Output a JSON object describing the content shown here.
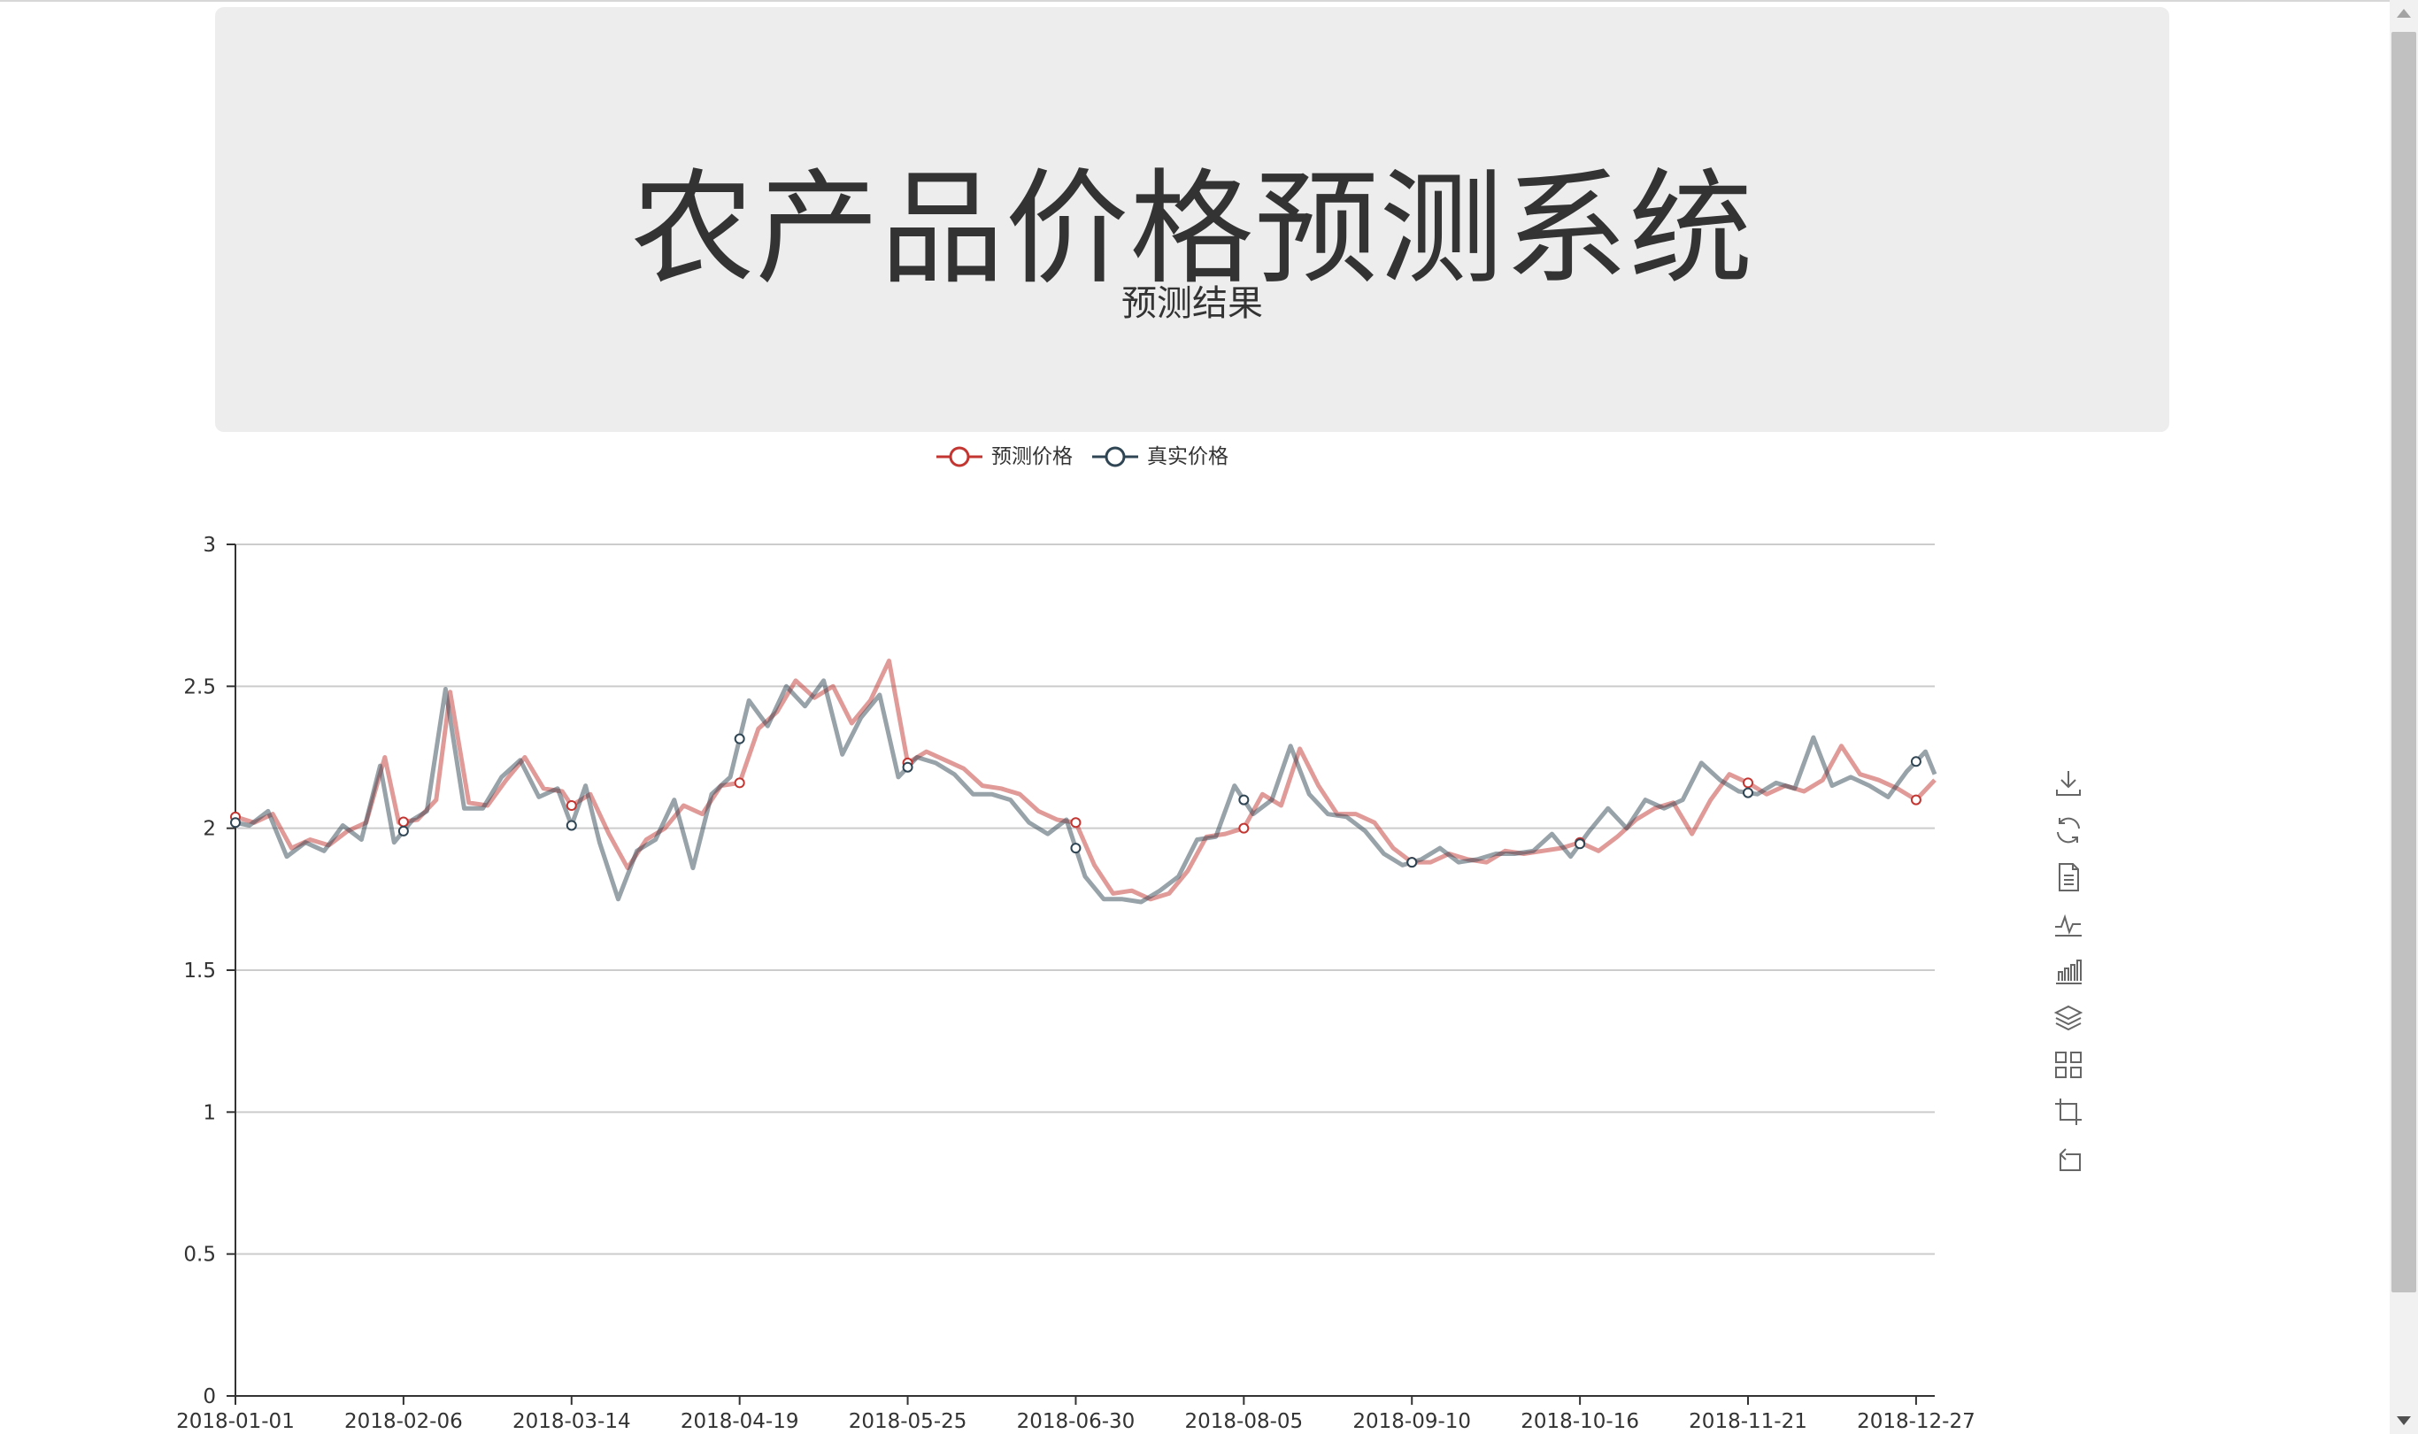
{
  "header": {
    "title": "农产品价格预测系统",
    "subtitle": "预测结果"
  },
  "legend": [
    {
      "name": "预测价格",
      "color": "#c23531"
    },
    {
      "name": "真实价格",
      "color": "#2f4554"
    }
  ],
  "toolbox": [
    {
      "name": "save-as-image",
      "icon": "download-icon"
    },
    {
      "name": "restore",
      "icon": "refresh-icon"
    },
    {
      "name": "data-view",
      "icon": "document-icon"
    },
    {
      "name": "line-chart",
      "icon": "line-chart-icon"
    },
    {
      "name": "bar-chart",
      "icon": "bar-chart-icon"
    },
    {
      "name": "stack",
      "icon": "stack-icon"
    },
    {
      "name": "tiled",
      "icon": "grid-icon"
    },
    {
      "name": "data-zoom",
      "icon": "zoom-icon"
    },
    {
      "name": "zoom-reset",
      "icon": "zoom-reset-icon"
    }
  ],
  "chart_data": {
    "type": "line",
    "x_ticks": [
      "2018-01-01",
      "2018-02-06",
      "2018-03-14",
      "2018-04-19",
      "2018-05-25",
      "2018-06-30",
      "2018-08-05",
      "2018-09-10",
      "2018-10-16",
      "2018-11-21",
      "2018-12-27"
    ],
    "ylim": [
      0,
      3
    ],
    "y_ticks": [
      "0",
      "0.5",
      "1",
      "1.5",
      "2",
      "2.5",
      "3"
    ],
    "grid": "horizontal",
    "x_range": [
      "2018-01-01",
      "2018-12-31"
    ],
    "series": [
      {
        "name": "预测价格",
        "color": "#c23531",
        "x": [
          "2018-01-01",
          "2018-01-05",
          "2018-01-09",
          "2018-01-13",
          "2018-01-17",
          "2018-01-21",
          "2018-01-25",
          "2018-01-29",
          "2018-02-02",
          "2018-02-05",
          "2018-02-09",
          "2018-02-13",
          "2018-02-16",
          "2018-02-20",
          "2018-02-24",
          "2018-02-28",
          "2018-03-04",
          "2018-03-08",
          "2018-03-12",
          "2018-03-14",
          "2018-03-18",
          "2018-03-22",
          "2018-03-26",
          "2018-03-30",
          "2018-04-03",
          "2018-04-07",
          "2018-04-11",
          "2018-04-15",
          "2018-04-19",
          "2018-04-23",
          "2018-04-27",
          "2018-05-01",
          "2018-05-05",
          "2018-05-09",
          "2018-05-13",
          "2018-05-17",
          "2018-05-21",
          "2018-05-25",
          "2018-05-29",
          "2018-06-02",
          "2018-06-06",
          "2018-06-10",
          "2018-06-14",
          "2018-06-18",
          "2018-06-22",
          "2018-06-26",
          "2018-06-30",
          "2018-07-04",
          "2018-07-08",
          "2018-07-12",
          "2018-07-16",
          "2018-07-20",
          "2018-07-24",
          "2018-07-28",
          "2018-08-01",
          "2018-08-05",
          "2018-08-09",
          "2018-08-13",
          "2018-08-17",
          "2018-08-21",
          "2018-08-25",
          "2018-08-29",
          "2018-09-02",
          "2018-09-06",
          "2018-09-10",
          "2018-09-14",
          "2018-09-18",
          "2018-09-22",
          "2018-09-26",
          "2018-09-30",
          "2018-10-04",
          "2018-10-08",
          "2018-10-12",
          "2018-10-16",
          "2018-10-20",
          "2018-10-24",
          "2018-10-28",
          "2018-11-01",
          "2018-11-05",
          "2018-11-09",
          "2018-11-13",
          "2018-11-17",
          "2018-11-21",
          "2018-11-25",
          "2018-11-29",
          "2018-12-03",
          "2018-12-07",
          "2018-12-11",
          "2018-12-15",
          "2018-12-19",
          "2018-12-23",
          "2018-12-27",
          "2018-12-31"
        ],
        "y": [
          2.04,
          2.02,
          2.05,
          1.93,
          1.96,
          1.94,
          1.99,
          2.02,
          2.25,
          2.02,
          2.03,
          2.1,
          2.48,
          2.09,
          2.08,
          2.17,
          2.25,
          2.14,
          2.13,
          2.08,
          2.12,
          1.98,
          1.86,
          1.96,
          2.0,
          2.08,
          2.05,
          2.15,
          2.16,
          2.35,
          2.41,
          2.52,
          2.46,
          2.5,
          2.37,
          2.45,
          2.59,
          2.23,
          2.27,
          2.24,
          2.21,
          2.15,
          2.14,
          2.12,
          2.06,
          2.03,
          2.02,
          1.87,
          1.77,
          1.78,
          1.75,
          1.77,
          1.85,
          1.97,
          1.98,
          2.0,
          2.12,
          2.08,
          2.28,
          2.15,
          2.05,
          2.05,
          2.02,
          1.93,
          1.88,
          1.88,
          1.91,
          1.89,
          1.88,
          1.92,
          1.91,
          1.92,
          1.93,
          1.95,
          1.92,
          1.97,
          2.03,
          2.07,
          2.09,
          1.98,
          2.1,
          2.19,
          2.16,
          2.12,
          2.15,
          2.13,
          2.17,
          2.29,
          2.19,
          2.17,
          2.14,
          2.1,
          2.17
        ]
      },
      {
        "name": "真实价格",
        "color": "#2f4554",
        "x": [
          "2018-01-01",
          "2018-01-04",
          "2018-01-08",
          "2018-01-12",
          "2018-01-16",
          "2018-01-20",
          "2018-01-24",
          "2018-01-28",
          "2018-02-01",
          "2018-02-04",
          "2018-02-08",
          "2018-02-11",
          "2018-02-15",
          "2018-02-19",
          "2018-02-23",
          "2018-02-27",
          "2018-03-03",
          "2018-03-07",
          "2018-03-11",
          "2018-03-14",
          "2018-03-17",
          "2018-03-20",
          "2018-03-24",
          "2018-03-28",
          "2018-04-01",
          "2018-04-05",
          "2018-04-09",
          "2018-04-13",
          "2018-04-17",
          "2018-04-21",
          "2018-04-25",
          "2018-04-29",
          "2018-05-03",
          "2018-05-07",
          "2018-05-11",
          "2018-05-15",
          "2018-05-19",
          "2018-05-23",
          "2018-05-27",
          "2018-05-31",
          "2018-06-04",
          "2018-06-08",
          "2018-06-12",
          "2018-06-16",
          "2018-06-20",
          "2018-06-24",
          "2018-06-28",
          "2018-07-02",
          "2018-07-06",
          "2018-07-10",
          "2018-07-14",
          "2018-07-18",
          "2018-07-22",
          "2018-07-26",
          "2018-07-30",
          "2018-08-03",
          "2018-08-07",
          "2018-08-11",
          "2018-08-15",
          "2018-08-19",
          "2018-08-23",
          "2018-08-27",
          "2018-08-31",
          "2018-09-04",
          "2018-09-08",
          "2018-09-12",
          "2018-09-16",
          "2018-09-20",
          "2018-09-24",
          "2018-09-28",
          "2018-10-02",
          "2018-10-06",
          "2018-10-10",
          "2018-10-14",
          "2018-10-18",
          "2018-10-22",
          "2018-10-26",
          "2018-10-30",
          "2018-11-03",
          "2018-11-07",
          "2018-11-11",
          "2018-11-15",
          "2018-11-19",
          "2018-11-23",
          "2018-11-27",
          "2018-12-01",
          "2018-12-05",
          "2018-12-09",
          "2018-12-13",
          "2018-12-17",
          "2018-12-21",
          "2018-12-25",
          "2018-12-29",
          "2018-12-31"
        ],
        "y": [
          2.02,
          2.01,
          2.06,
          1.9,
          1.95,
          1.92,
          2.01,
          1.96,
          2.22,
          1.95,
          2.03,
          2.06,
          2.49,
          2.07,
          2.07,
          2.18,
          2.24,
          2.11,
          2.14,
          2.01,
          2.15,
          1.95,
          1.75,
          1.92,
          1.96,
          2.1,
          1.86,
          2.12,
          2.18,
          2.45,
          2.36,
          2.5,
          2.43,
          2.52,
          2.26,
          2.39,
          2.47,
          2.18,
          2.25,
          2.23,
          2.19,
          2.12,
          2.12,
          2.1,
          2.02,
          1.98,
          2.03,
          1.83,
          1.75,
          1.75,
          1.74,
          1.78,
          1.83,
          1.96,
          1.97,
          2.15,
          2.05,
          2.1,
          2.29,
          2.12,
          2.05,
          2.04,
          1.99,
          1.91,
          1.87,
          1.89,
          1.93,
          1.88,
          1.89,
          1.91,
          1.91,
          1.92,
          1.98,
          1.9,
          1.99,
          2.07,
          2.0,
          2.1,
          2.07,
          2.1,
          2.23,
          2.17,
          2.13,
          2.12,
          2.16,
          2.14,
          2.32,
          2.15,
          2.18,
          2.15,
          2.11,
          2.2,
          2.27,
          2.19
        ]
      }
    ]
  }
}
